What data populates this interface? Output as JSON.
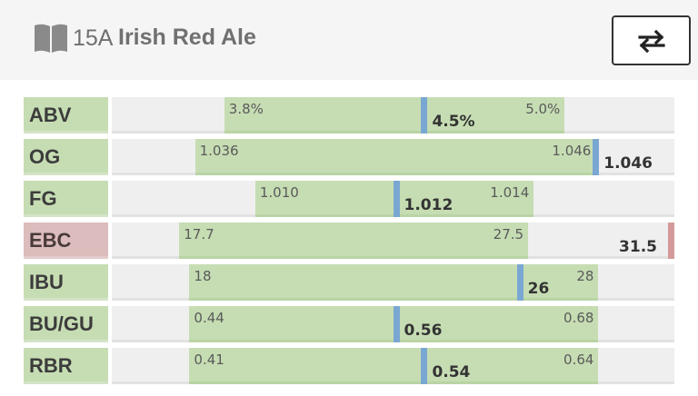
{
  "header": {
    "style_code": "15A",
    "style_name": "Irish Red Ale",
    "book_icon": "book-icon",
    "swap_icon": "swap-arrows-icon"
  },
  "colors": {
    "in_range": "#c6ddb3",
    "track": "#efefef",
    "marker": "#7aa7d2",
    "out_of_range_label": "#dcbcbc",
    "out_of_range_marker": "#d49a9a"
  },
  "stats": [
    {
      "label": "ABV",
      "min": "3.8%",
      "max": "5.0%",
      "value": "4.5%",
      "range_start_pct": 0.2,
      "range_end_pct": 0.805,
      "marker_pct": 0.55,
      "in_range": true
    },
    {
      "label": "OG",
      "min": "1.036",
      "max": "1.046",
      "value": "1.046",
      "range_start_pct": 0.148,
      "range_end_pct": 0.86,
      "marker_pct": 0.855,
      "in_range": true
    },
    {
      "label": "FG",
      "min": "1.010",
      "max": "1.014",
      "value": "1.012",
      "range_start_pct": 0.255,
      "range_end_pct": 0.75,
      "marker_pct": 0.5,
      "in_range": true
    },
    {
      "label": "EBC",
      "min": "17.7",
      "max": "27.5",
      "value": "31.5",
      "range_start_pct": 0.12,
      "range_end_pct": 0.74,
      "marker_pct": 0.99,
      "in_range": false
    },
    {
      "label": "IBU",
      "min": "18",
      "max": "28",
      "value": "26",
      "range_start_pct": 0.138,
      "range_end_pct": 0.865,
      "marker_pct": 0.72,
      "in_range": true
    },
    {
      "label": "BU/GU",
      "min": "0.44",
      "max": "0.68",
      "value": "0.56",
      "range_start_pct": 0.138,
      "range_end_pct": 0.865,
      "marker_pct": 0.5,
      "in_range": true
    },
    {
      "label": "RBR",
      "min": "0.41",
      "max": "0.64",
      "value": "0.54",
      "range_start_pct": 0.138,
      "range_end_pct": 0.865,
      "marker_pct": 0.55,
      "in_range": true
    }
  ]
}
